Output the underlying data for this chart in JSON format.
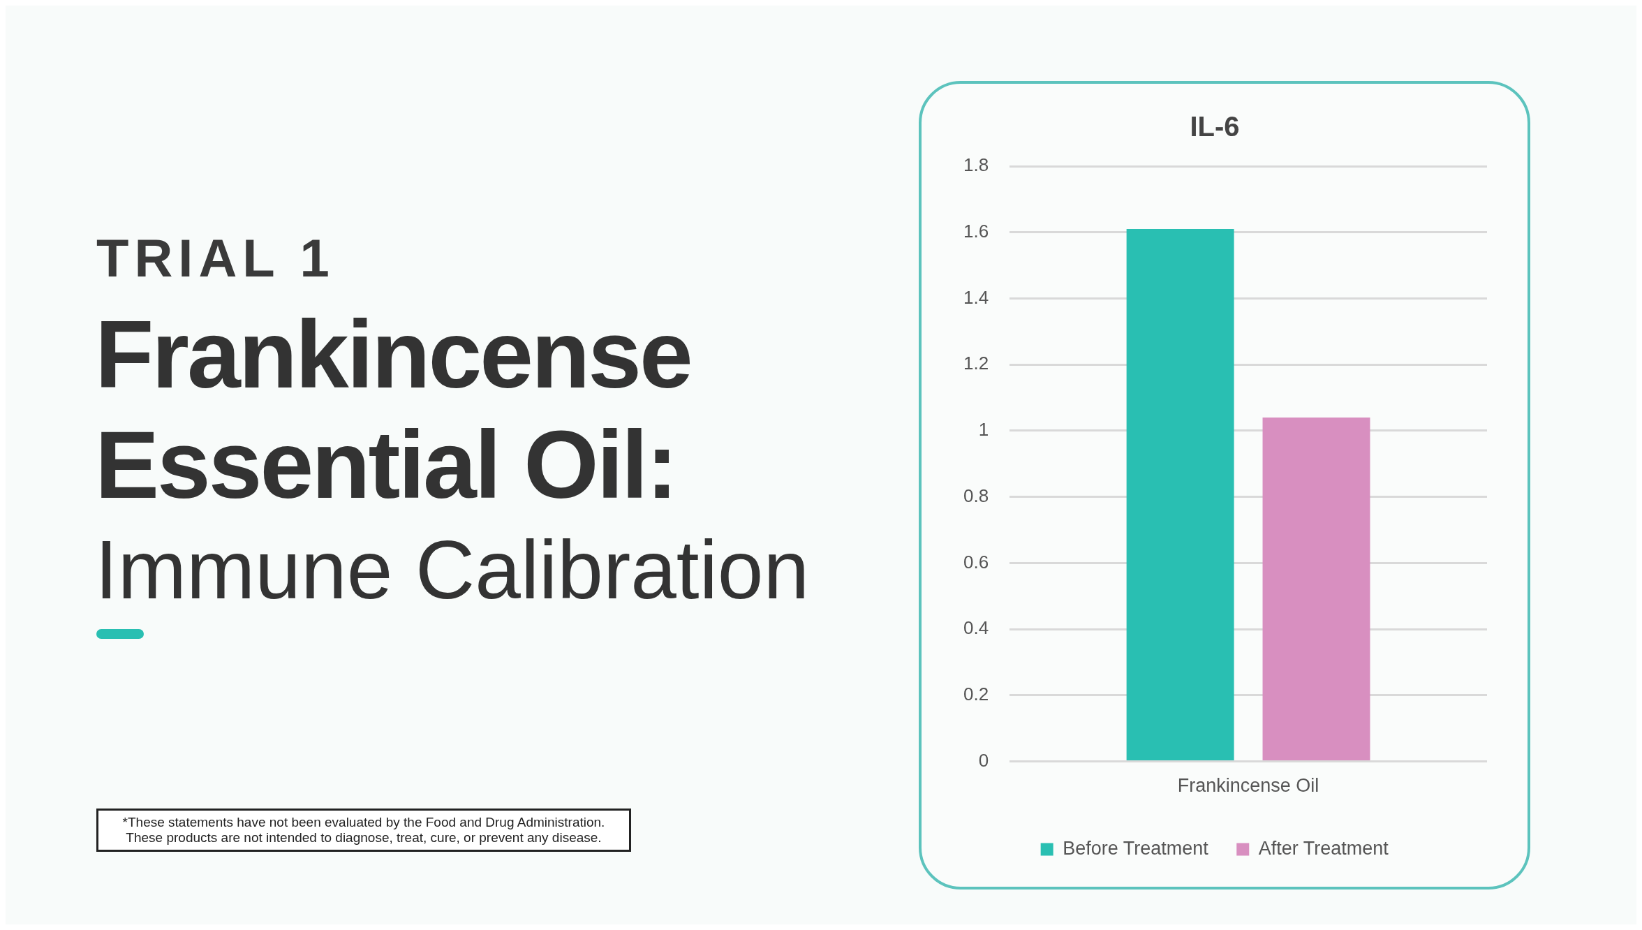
{
  "chart_data": {
    "type": "bar",
    "title": "IL-6",
    "categories": [
      "Frankincense Oil"
    ],
    "series": [
      {
        "name": "Before Treatment",
        "color": "#29bfb2",
        "values": [
          1.61
        ]
      },
      {
        "name": "After Treatment",
        "color": "#d88fc0",
        "values": [
          1.04
        ]
      }
    ],
    "ylim": [
      0,
      1.8
    ],
    "yticks": [
      0,
      0.2,
      0.4,
      0.6,
      0.8,
      1,
      1.2,
      1.4,
      1.6,
      1.8
    ],
    "grid": "y",
    "legend": "bottom",
    "annotations": [
      "TRIAL 1",
      "Frankincense Essential Oil:",
      "Immune Calibration",
      "*These statements have not been evaluated by the Food and Drug Administration.\nThese products are not intended to diagnose, treat, cure, or prevent any disease."
    ]
  }
}
